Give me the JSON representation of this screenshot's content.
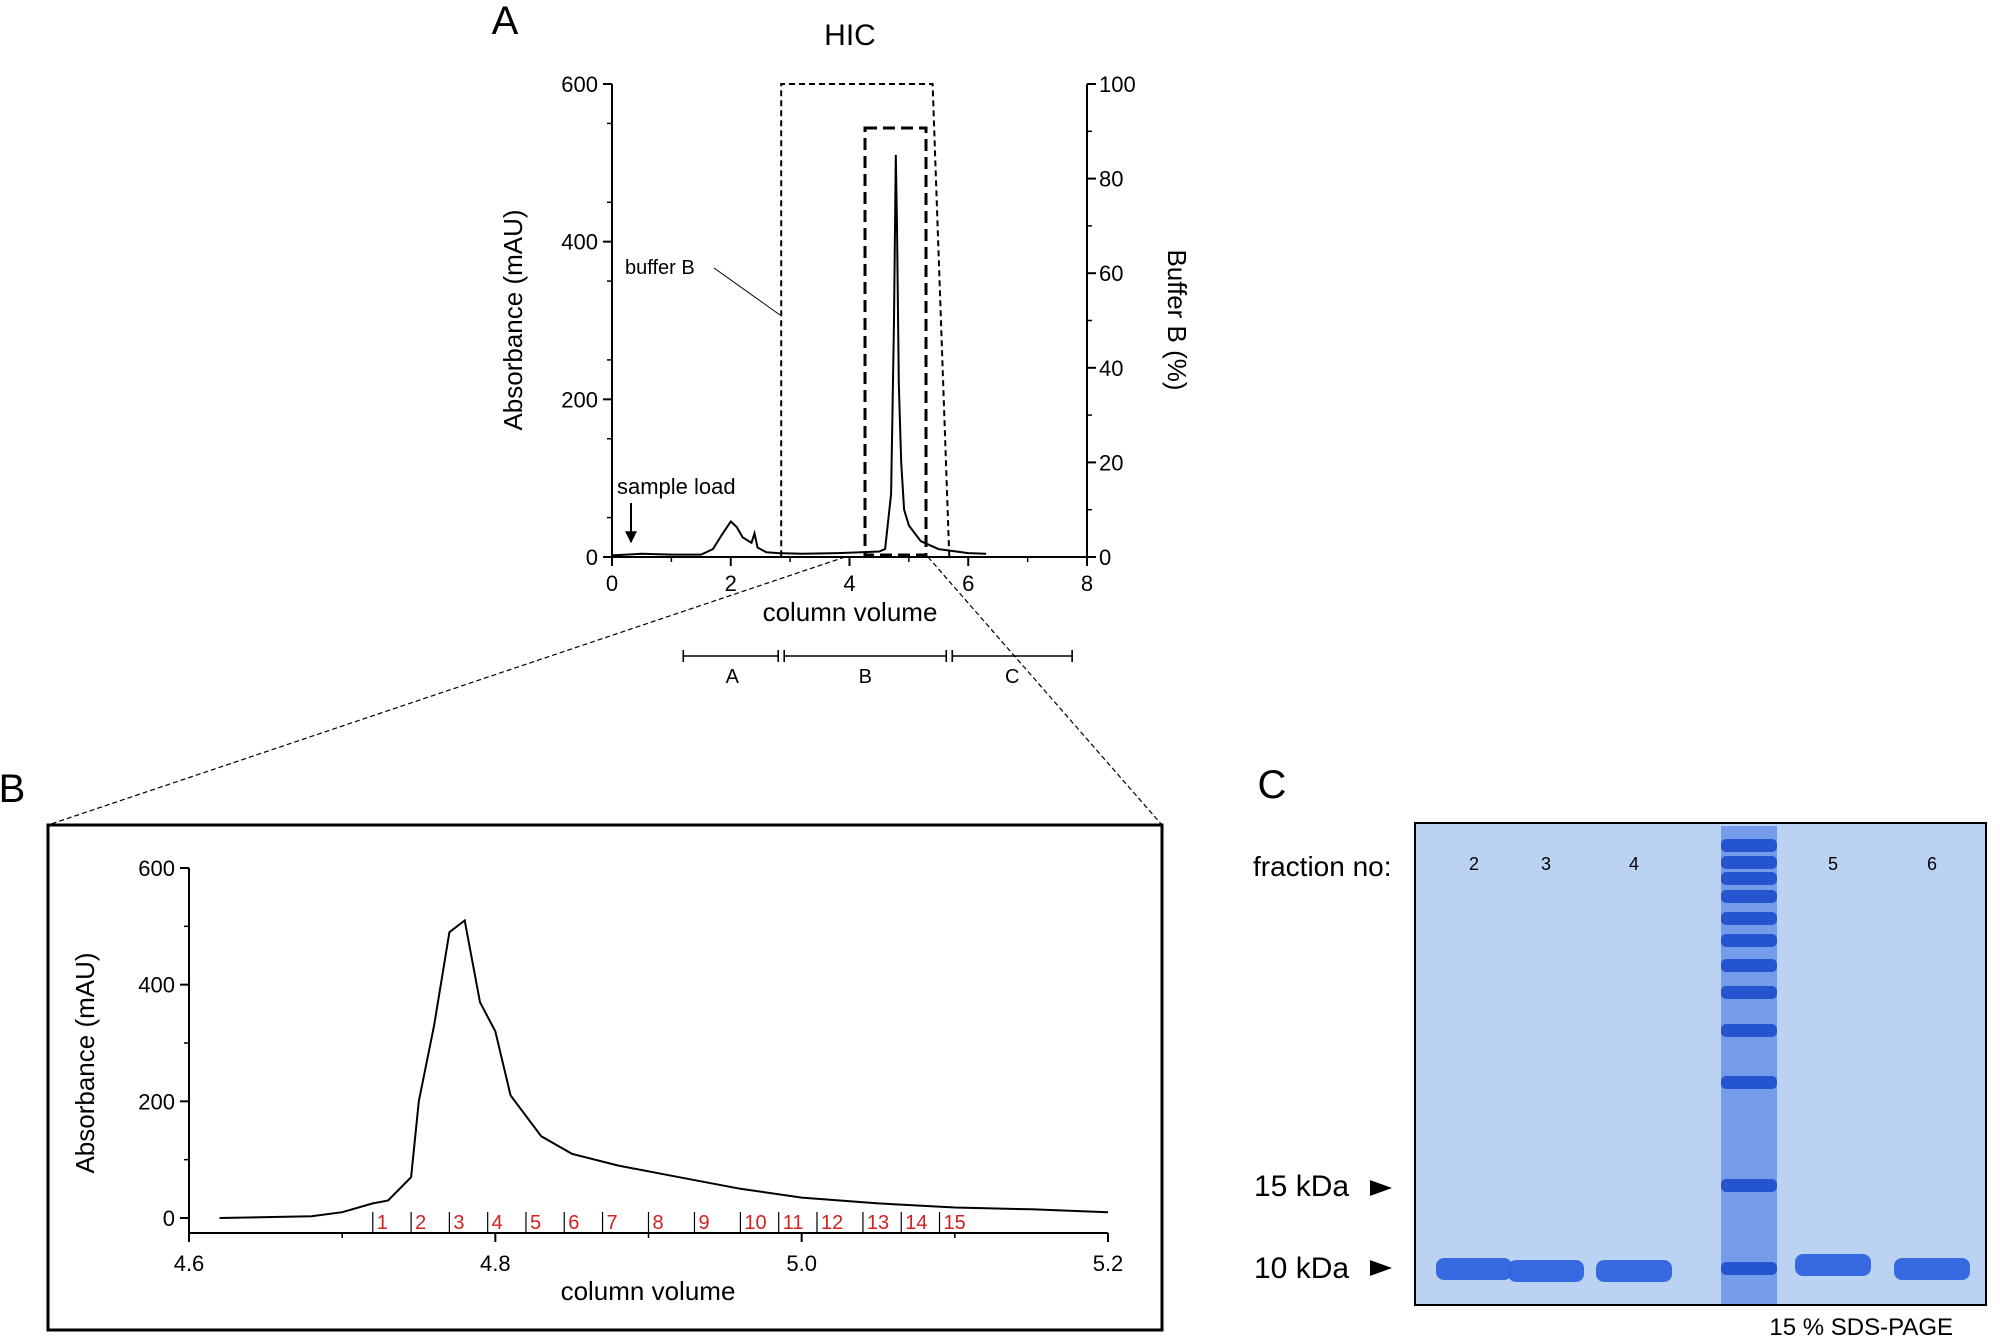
{
  "panels": {
    "a": {
      "letter": "A"
    },
    "b": {
      "letter": "B"
    },
    "c": {
      "letter": "C"
    }
  },
  "chart_data": [
    {
      "id": "hic",
      "type": "line",
      "title": "HIC",
      "xlabel": "column volume",
      "ylabel": "Absorbance (mAU)",
      "y2label": "Buffer B (%)",
      "xlim": [
        0,
        8
      ],
      "ylim": [
        0,
        600
      ],
      "y2lim": [
        0,
        100
      ],
      "xticks": [
        0,
        2,
        4,
        6,
        8
      ],
      "yticks": [
        0,
        200,
        400,
        600
      ],
      "y2ticks": [
        0,
        20,
        40,
        60,
        80,
        100
      ],
      "series": [
        {
          "name": "Absorbance",
          "x": [
            0,
            0.5,
            1.0,
            1.5,
            1.7,
            1.85,
            2.0,
            2.1,
            2.2,
            2.35,
            2.4,
            2.45,
            2.6,
            2.8,
            3.2,
            3.8,
            4.2,
            4.5,
            4.6,
            4.7,
            4.75,
            4.78,
            4.8,
            4.83,
            4.87,
            4.92,
            5.0,
            5.2,
            5.5,
            6.0,
            6.3
          ],
          "y": [
            2,
            4,
            3,
            3,
            10,
            28,
            45,
            38,
            25,
            18,
            30,
            12,
            6,
            5,
            4,
            5,
            6,
            7,
            10,
            80,
            300,
            510,
            420,
            220,
            120,
            60,
            40,
            20,
            10,
            5,
            4
          ]
        },
        {
          "name": "Buffer B",
          "axis": "right",
          "x": [
            0,
            2.85,
            2.85,
            5.4,
            5.68,
            6.3
          ],
          "y": [
            0,
            0,
            100,
            100,
            0,
            0
          ]
        }
      ],
      "annotations": [
        {
          "label": "buffer B"
        },
        {
          "label": "sample load"
        }
      ],
      "fractions": [
        {
          "label": "A",
          "range": [
            1.2,
            2.85
          ]
        },
        {
          "label": "B",
          "range": [
            2.85,
            5.68
          ]
        },
        {
          "label": "C",
          "range": [
            5.68,
            7.8
          ]
        }
      ]
    },
    {
      "id": "zoom",
      "type": "line",
      "xlabel": "column volume",
      "ylabel": "Absorbance (mAU)",
      "xlim": [
        4.6,
        5.2
      ],
      "ylim": [
        0,
        600
      ],
      "xticks": [
        4.6,
        4.8,
        5.0,
        5.2
      ],
      "xtick_labels": [
        "4.6",
        "4.8",
        "5.0",
        "5.2"
      ],
      "yticks": [
        0,
        200,
        400,
        600
      ],
      "series": [
        {
          "name": "Absorbance",
          "x": [
            4.62,
            4.68,
            4.7,
            4.72,
            4.73,
            4.745,
            4.75,
            4.76,
            4.77,
            4.78,
            4.79,
            4.8,
            4.81,
            4.83,
            4.85,
            4.88,
            4.92,
            4.96,
            5.0,
            5.05,
            5.1,
            5.15,
            5.2
          ],
          "y": [
            0,
            3,
            10,
            25,
            30,
            70,
            200,
            330,
            490,
            510,
            370,
            320,
            210,
            140,
            110,
            90,
            70,
            50,
            35,
            25,
            18,
            15,
            10
          ]
        }
      ],
      "fraction_markers": {
        "boundaries": [
          4.72,
          4.745,
          4.77,
          4.795,
          4.82,
          4.845,
          4.87,
          4.9,
          4.93,
          4.96,
          4.985,
          5.01,
          5.04,
          5.065,
          5.09
        ],
        "labels": [
          "1",
          "2",
          "3",
          "4",
          "5",
          "6",
          "7",
          "8",
          "9",
          "10",
          "11",
          "12",
          "13",
          "14",
          "15"
        ],
        "color": "#d42020"
      }
    }
  ],
  "gel": {
    "header": "fraction no:",
    "lanes": [
      "2",
      "3",
      "4",
      "",
      "5",
      "6"
    ],
    "markers": [
      {
        "label": "15 kDa"
      },
      {
        "label": "10 kDa"
      }
    ],
    "caption": "15 % SDS-PAGE",
    "colors": {
      "background": "#bcd2f2",
      "band": "#2f64de",
      "ladder": "#3a6fe6"
    }
  }
}
